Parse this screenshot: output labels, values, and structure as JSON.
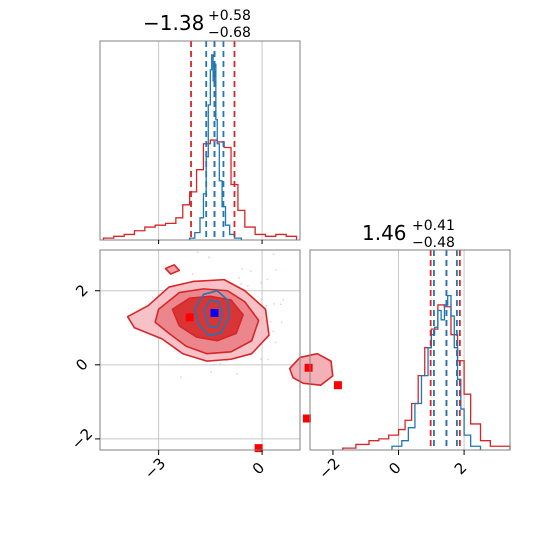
{
  "colors": {
    "red": "#d62728",
    "blue": "#1f77b4",
    "marker_red": "#ff0000",
    "marker_blue": "#0000ff",
    "grid": "#c8c8c8"
  },
  "chart_data": [
    {
      "type": "histogram",
      "panel": "top-left",
      "title": {
        "value": "−1.38",
        "sup": "+0.58",
        "sub": "−0.68"
      },
      "xlim": [
        -4.7,
        1.1
      ],
      "quantile_lines_red": [
        -2.06,
        -1.38,
        -0.8
      ],
      "quantile_lines_blue": [
        -1.62,
        -1.38,
        -1.12
      ],
      "grid_x": [
        -3,
        0
      ],
      "series": [
        {
          "name": "",
          "color": "red",
          "edges": [
            -4.6,
            -4.3,
            -4.0,
            -3.7,
            -3.4,
            -3.1,
            -2.8,
            -2.5,
            -2.3,
            -2.1,
            -1.9,
            -1.7,
            -1.5,
            -1.3,
            -1.1,
            -0.9,
            -0.7,
            -0.5,
            -0.2,
            0.1,
            0.4,
            0.7,
            1.0
          ],
          "heights": [
            0.01,
            0.02,
            0.03,
            0.05,
            0.07,
            0.08,
            0.09,
            0.12,
            0.19,
            0.26,
            0.38,
            0.52,
            0.54,
            0.53,
            0.5,
            0.3,
            0.16,
            0.07,
            0.03,
            0.02,
            0.03,
            0.02
          ]
        },
        {
          "name": "",
          "color": "blue",
          "edges": [
            -2.1,
            -1.95,
            -1.8,
            -1.7,
            -1.62,
            -1.56,
            -1.5,
            -1.46,
            -1.42,
            -1.38,
            -1.34,
            -1.3,
            -1.24,
            -1.16,
            -1.06,
            -0.94,
            -0.8,
            -0.6
          ],
          "heights": [
            0.01,
            0.04,
            0.12,
            0.25,
            0.45,
            0.73,
            0.92,
            1.0,
            0.86,
            0.95,
            0.65,
            0.52,
            0.32,
            0.18,
            0.08,
            0.03,
            0.01
          ]
        }
      ]
    },
    {
      "type": "scatter-contour",
      "panel": "bottom-left",
      "xlim": [
        -4.7,
        1.1
      ],
      "ylim": [
        -2.3,
        3.1
      ],
      "xticks": [
        -3,
        0
      ],
      "xticklabels": [
        "−3",
        "0"
      ],
      "yticks": [
        -2,
        0,
        2
      ],
      "yticklabels": [
        "−2",
        "0",
        "2"
      ],
      "markers_red": [
        [
          -2.1,
          1.28
        ],
        [
          1.35,
          -0.08
        ],
        [
          2.2,
          -0.55
        ],
        [
          1.3,
          -1.45
        ],
        [
          -0.1,
          -2.25
        ]
      ],
      "markers_blue": [
        [
          -1.38,
          1.4
        ]
      ],
      "red_contours": [
        [
          [
            -3.3,
            1.6
          ],
          [
            -2.7,
            2.1
          ],
          [
            -2.0,
            2.25
          ],
          [
            -1.1,
            2.3
          ],
          [
            -0.5,
            2.0
          ],
          [
            0.1,
            1.5
          ],
          [
            0.2,
            0.8
          ],
          [
            -0.3,
            0.3
          ],
          [
            -0.9,
            0.15
          ],
          [
            -1.6,
            0.1
          ],
          [
            -2.3,
            0.3
          ],
          [
            -2.9,
            0.7
          ],
          [
            -3.7,
            1.0
          ],
          [
            -3.9,
            1.3
          ]
        ],
        [
          [
            -3.0,
            1.5
          ],
          [
            -2.4,
            1.95
          ],
          [
            -1.7,
            2.05
          ],
          [
            -1.0,
            2.0
          ],
          [
            -0.5,
            1.7
          ],
          [
            -0.1,
            1.2
          ],
          [
            -0.3,
            0.65
          ],
          [
            -0.9,
            0.35
          ],
          [
            -1.6,
            0.3
          ],
          [
            -2.2,
            0.5
          ],
          [
            -2.7,
            0.85
          ],
          [
            -3.1,
            1.15
          ]
        ],
        [
          [
            -2.6,
            1.5
          ],
          [
            -2.1,
            1.8
          ],
          [
            -1.5,
            1.85
          ],
          [
            -0.9,
            1.75
          ],
          [
            -0.55,
            1.35
          ],
          [
            -0.75,
            0.85
          ],
          [
            -1.3,
            0.65
          ],
          [
            -1.9,
            0.75
          ],
          [
            -2.4,
            1.05
          ]
        ],
        [
          [
            0.8,
            -0.1
          ],
          [
            1.1,
            0.2
          ],
          [
            1.6,
            0.3
          ],
          [
            2.0,
            0.1
          ],
          [
            2.05,
            -0.3
          ],
          [
            1.7,
            -0.55
          ],
          [
            1.2,
            -0.5
          ],
          [
            0.9,
            -0.35
          ]
        ],
        [
          [
            -2.8,
            2.6
          ],
          [
            -2.55,
            2.7
          ],
          [
            -2.4,
            2.55
          ],
          [
            -2.65,
            2.45
          ]
        ]
      ],
      "blue_contours": [
        [
          [
            -1.95,
            1.5
          ],
          [
            -1.7,
            1.9
          ],
          [
            -1.3,
            2.0
          ],
          [
            -1.0,
            1.75
          ],
          [
            -0.95,
            1.3
          ],
          [
            -1.2,
            0.85
          ],
          [
            -1.55,
            0.8
          ],
          [
            -1.85,
            1.1
          ]
        ],
        [
          [
            -1.7,
            1.45
          ],
          [
            -1.5,
            1.75
          ],
          [
            -1.25,
            1.7
          ],
          [
            -1.15,
            1.35
          ],
          [
            -1.3,
            1.0
          ],
          [
            -1.55,
            1.05
          ]
        ]
      ]
    },
    {
      "type": "histogram",
      "panel": "bottom-right",
      "title": {
        "value": "1.46",
        "sup": "+0.41",
        "sub": "−0.48"
      },
      "xlim": [
        -2.7,
        3.4
      ],
      "xticks": [
        -2,
        0,
        2
      ],
      "xticklabels": [
        "−2",
        "0",
        "2"
      ],
      "quantile_lines_red": [
        0.98,
        1.46,
        1.87
      ],
      "quantile_lines_blue": [
        1.08,
        1.46,
        1.78
      ],
      "grid_x": [
        0,
        2
      ],
      "series": [
        {
          "name": "",
          "color": "red",
          "edges": [
            -1.7,
            -1.3,
            -0.9,
            -0.6,
            -0.3,
            0.0,
            0.2,
            0.4,
            0.6,
            0.8,
            1.0,
            1.2,
            1.4,
            1.6,
            1.8,
            2.0,
            2.2,
            2.5,
            2.8,
            3.4
          ],
          "heights": [
            0.01,
            0.03,
            0.05,
            0.06,
            0.08,
            0.11,
            0.16,
            0.25,
            0.4,
            0.55,
            0.65,
            0.78,
            0.77,
            0.62,
            0.48,
            0.3,
            0.14,
            0.05,
            0.02
          ]
        },
        {
          "name": "",
          "color": "blue",
          "edges": [
            -0.2,
            0.1,
            0.3,
            0.5,
            0.7,
            0.9,
            1.0,
            1.1,
            1.2,
            1.3,
            1.4,
            1.5,
            1.6,
            1.7,
            1.8,
            1.9,
            2.0,
            2.2,
            2.5
          ],
          "heights": [
            0.02,
            0.05,
            0.12,
            0.25,
            0.4,
            0.55,
            0.62,
            0.66,
            0.75,
            0.7,
            0.78,
            0.83,
            0.72,
            0.55,
            0.38,
            0.22,
            0.08,
            0.02
          ]
        }
      ]
    }
  ]
}
